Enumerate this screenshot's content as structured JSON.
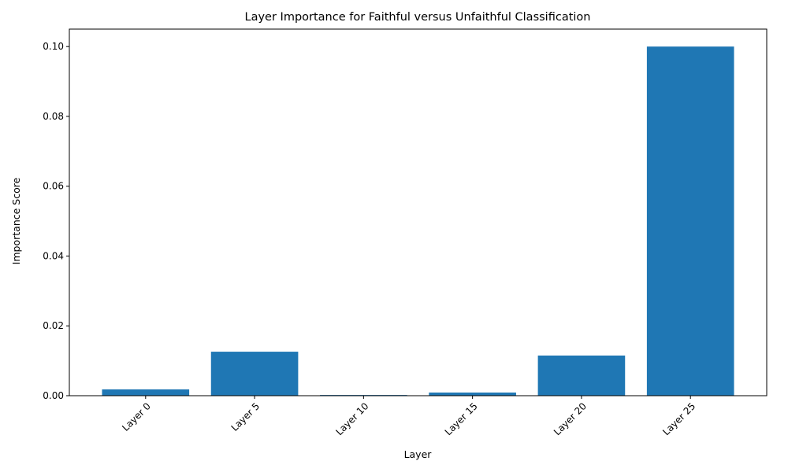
{
  "chart_data": {
    "type": "bar",
    "title": "Layer Importance for Faithful versus Unfaithful Classification",
    "xlabel": "Layer",
    "ylabel": "Importance Score",
    "categories": [
      "Layer 0",
      "Layer 5",
      "Layer 10",
      "Layer 15",
      "Layer 20",
      "Layer 25"
    ],
    "values": [
      0.0018,
      0.0126,
      0.0002,
      0.0009,
      0.0115,
      0.1
    ],
    "ylim": [
      0,
      0.105
    ],
    "yticks": [
      0.0,
      0.02,
      0.04,
      0.06,
      0.08,
      0.1
    ],
    "ytick_labels": [
      "0.00",
      "0.02",
      "0.04",
      "0.06",
      "0.08",
      "0.10"
    ],
    "xtick_rotation": 45,
    "grid": false,
    "bar_color": "#1f77b4"
  }
}
